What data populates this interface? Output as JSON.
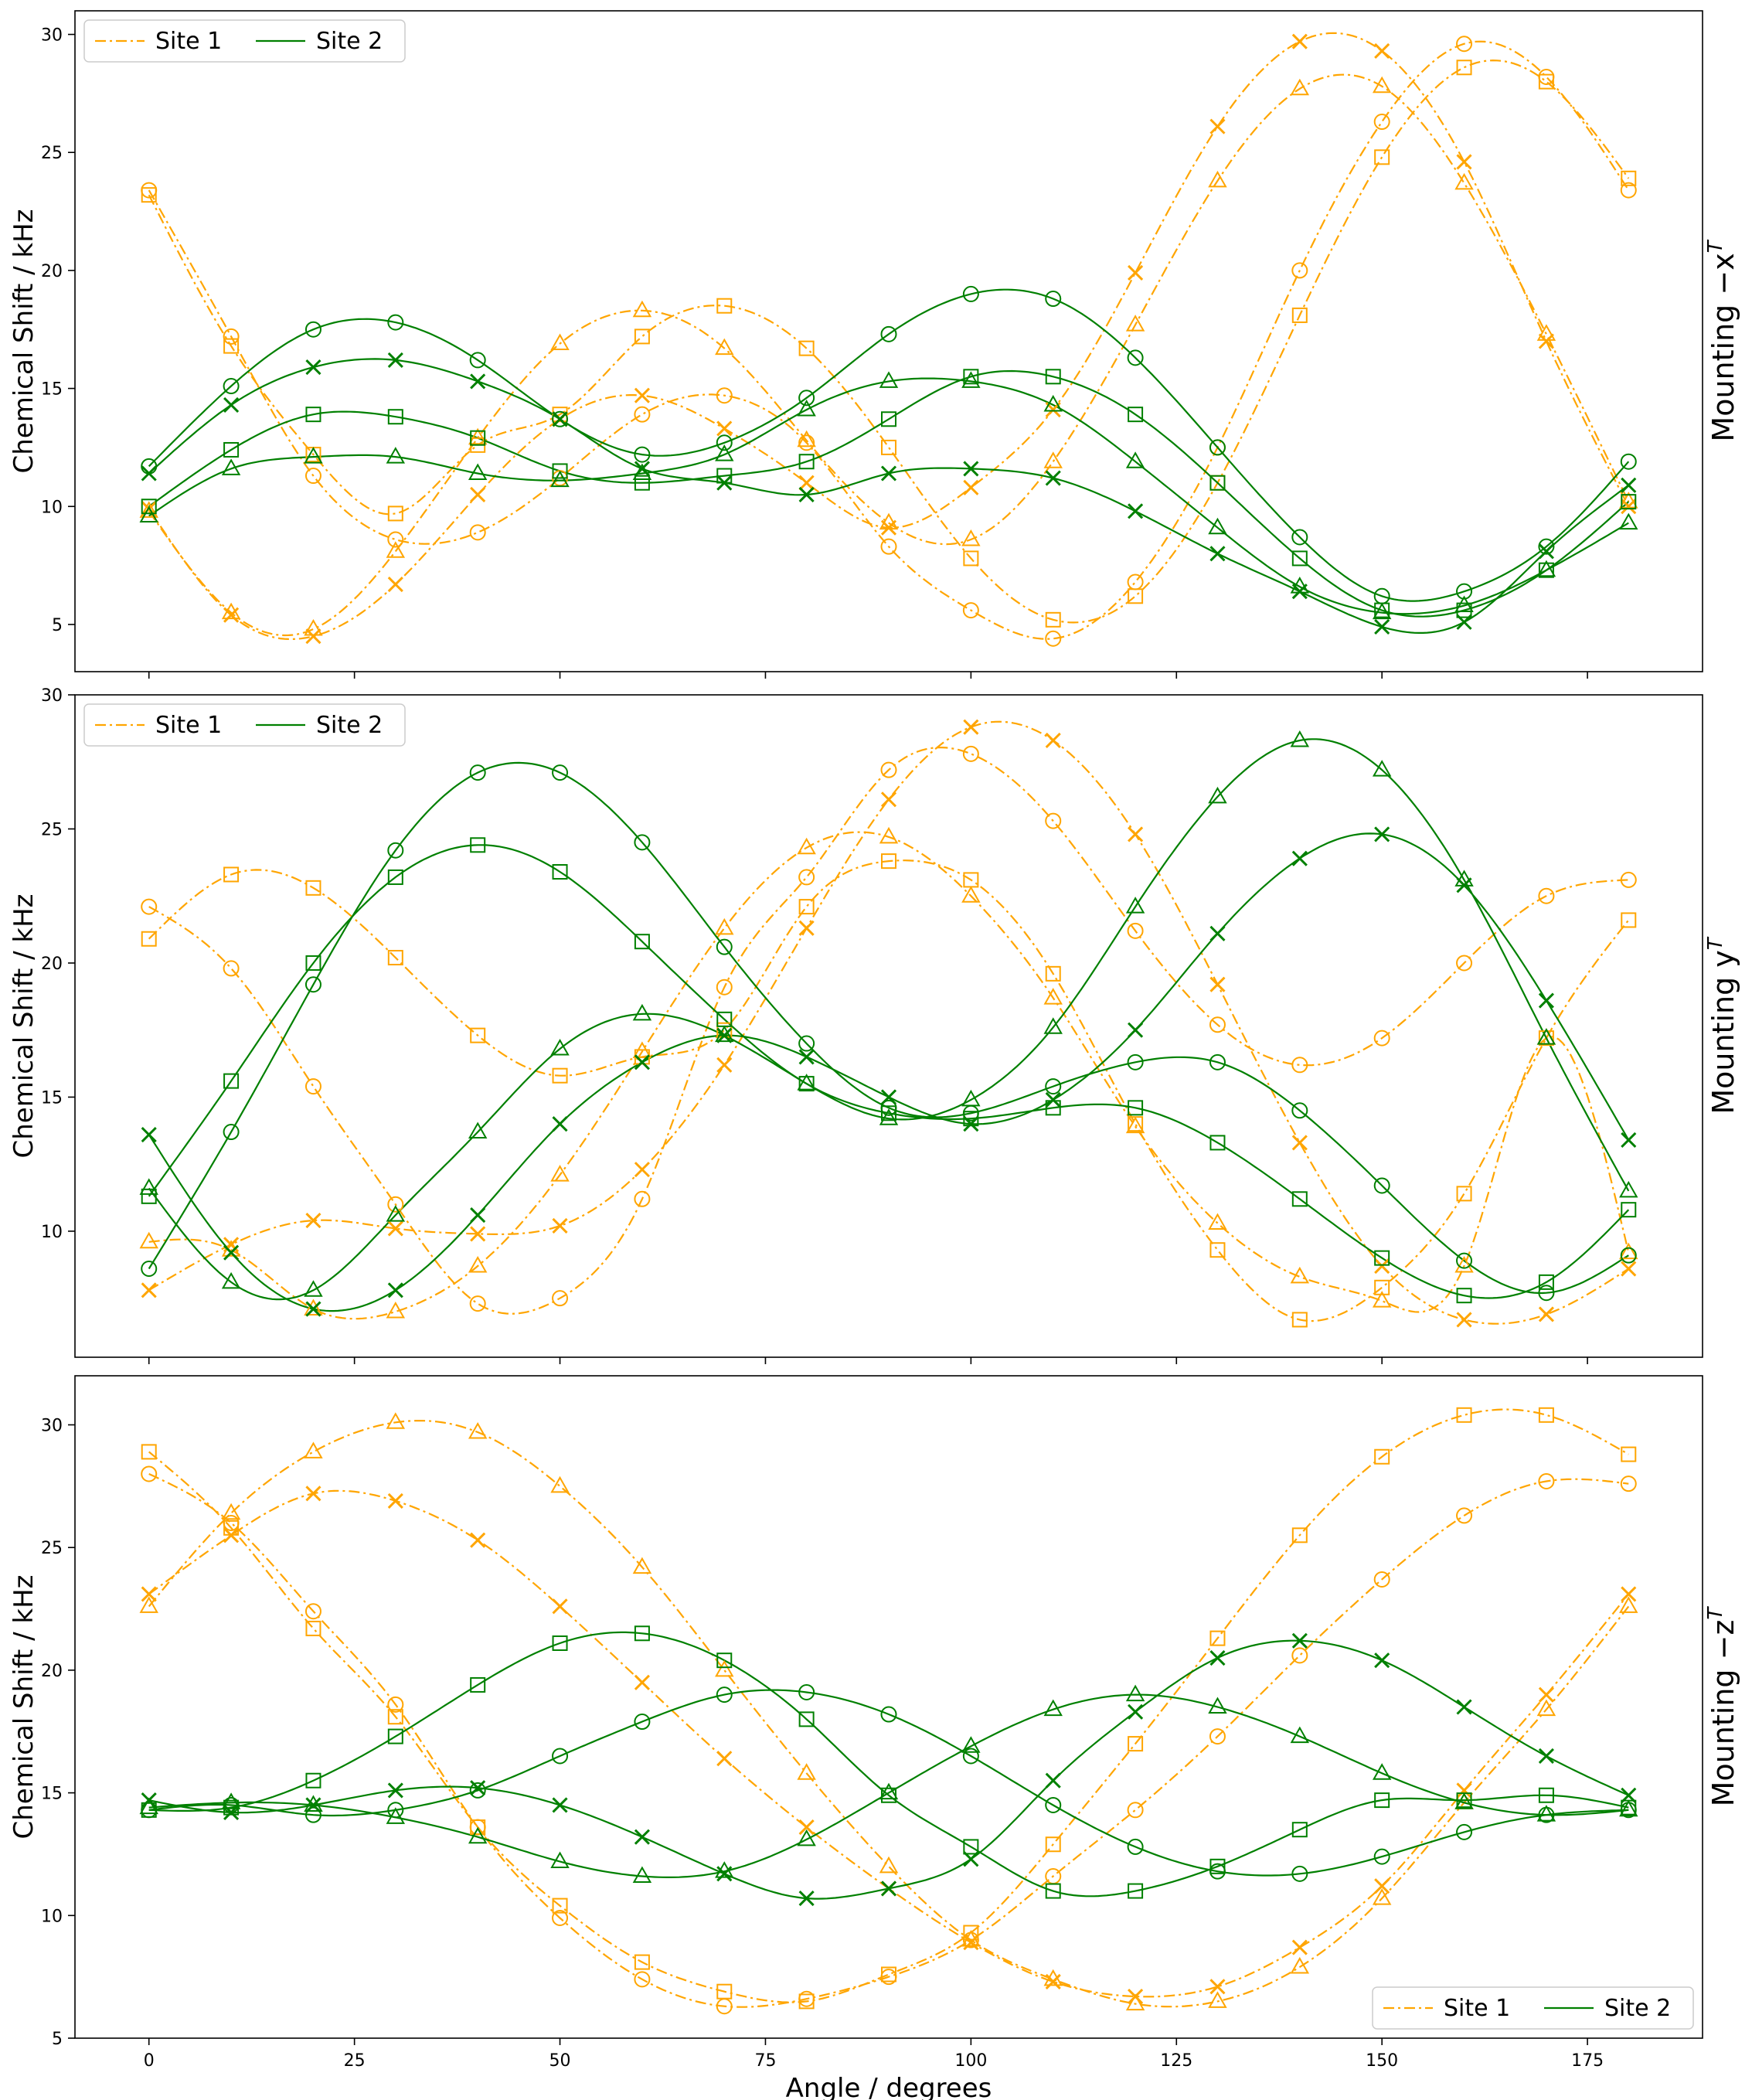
{
  "chart_data": [
    {
      "type": "line",
      "title": "",
      "xlabel": "",
      "ylabel": "Chemical Shift / kHz",
      "side_label": "Mounting −x",
      "side_label_sup": "T",
      "xlim": [
        -9,
        189
      ],
      "ylim": [
        3,
        31
      ],
      "xticks": [
        0,
        25,
        50,
        75,
        100,
        125,
        150,
        175
      ],
      "xtick_labels": [
        "",
        "",
        "",
        "",
        "",
        "",
        "",
        ""
      ],
      "yticks": [
        5,
        10,
        15,
        20,
        25,
        30
      ],
      "ytick_labels": [
        "5",
        "10",
        "15",
        "20",
        "25",
        "30"
      ],
      "legend": {
        "position": "top-left",
        "entries": [
          {
            "label": "Site 1",
            "style": "dashdot",
            "color": "#ffa500"
          },
          {
            "label": "Site 2",
            "style": "solid",
            "color": "#008000"
          }
        ]
      },
      "x": [
        0,
        10,
        20,
        30,
        40,
        50,
        60,
        70,
        80,
        90,
        100,
        110,
        120,
        130,
        140,
        150,
        160,
        170,
        180
      ],
      "series": [
        {
          "name": "Site 1",
          "marker": "circle",
          "color": "#ffa500",
          "values": [
            23.4,
            17.2,
            11.3,
            8.6,
            8.9,
            11.2,
            13.9,
            14.7,
            12.7,
            8.3,
            5.6,
            4.4,
            6.8,
            12.5,
            20.0,
            26.3,
            29.6,
            28.2,
            23.4
          ]
        },
        {
          "name": "Site 1",
          "marker": "square",
          "color": "#ffa500",
          "values": [
            23.2,
            16.8,
            12.2,
            9.7,
            12.6,
            13.9,
            17.2,
            18.5,
            16.7,
            12.5,
            7.8,
            5.2,
            6.2,
            11.0,
            18.1,
            24.8,
            28.6,
            28.0,
            23.9
          ]
        },
        {
          "name": "Site 1",
          "marker": "triangle",
          "color": "#ffa500",
          "values": [
            9.8,
            5.5,
            4.8,
            8.1,
            12.9,
            16.9,
            18.3,
            16.7,
            12.8,
            9.3,
            8.6,
            11.9,
            17.7,
            23.8,
            27.7,
            27.8,
            23.7,
            17.3,
            10.2
          ]
        },
        {
          "name": "Site 1",
          "marker": "x",
          "color": "#ffa500",
          "values": [
            9.9,
            5.4,
            4.5,
            6.7,
            10.5,
            13.7,
            14.7,
            13.3,
            11.0,
            9.1,
            10.8,
            14.1,
            19.9,
            26.1,
            29.7,
            29.3,
            24.6,
            17.0,
            10.0
          ]
        },
        {
          "name": "Site 2",
          "marker": "circle",
          "color": "#008000",
          "values": [
            11.7,
            15.1,
            17.5,
            17.8,
            16.2,
            13.7,
            12.2,
            12.7,
            14.6,
            17.3,
            19.0,
            18.8,
            16.3,
            12.5,
            8.7,
            6.2,
            6.4,
            8.3,
            11.9
          ]
        },
        {
          "name": "Site 2",
          "marker": "square",
          "color": "#008000",
          "values": [
            10.0,
            12.4,
            13.9,
            13.8,
            12.9,
            11.5,
            11.0,
            11.3,
            11.9,
            13.7,
            15.5,
            15.5,
            13.9,
            11.0,
            7.8,
            5.6,
            5.6,
            7.3,
            10.2
          ]
        },
        {
          "name": "Site 2",
          "marker": "triangle",
          "color": "#008000",
          "values": [
            9.6,
            11.6,
            12.1,
            12.1,
            11.4,
            11.1,
            11.4,
            12.2,
            14.1,
            15.3,
            15.3,
            14.3,
            11.9,
            9.1,
            6.6,
            5.5,
            5.8,
            7.3,
            9.3
          ]
        },
        {
          "name": "Site 2",
          "marker": "x",
          "color": "#008000",
          "values": [
            11.4,
            14.3,
            15.9,
            16.2,
            15.3,
            13.7,
            11.6,
            11.0,
            10.5,
            11.4,
            11.6,
            11.2,
            9.8,
            8.0,
            6.4,
            4.9,
            5.1,
            8.1,
            10.9
          ]
        }
      ]
    },
    {
      "type": "line",
      "title": "",
      "xlabel": "",
      "ylabel": "Chemical Shift / kHz",
      "side_label": "Mounting y",
      "side_label_sup": "T",
      "xlim": [
        -9,
        189
      ],
      "ylim": [
        5.3,
        30
      ],
      "xticks": [
        0,
        25,
        50,
        75,
        100,
        125,
        150,
        175
      ],
      "xtick_labels": [
        "",
        "",
        "",
        "",
        "",
        "",
        "",
        ""
      ],
      "yticks": [
        10,
        15,
        20,
        25,
        30
      ],
      "ytick_labels": [
        "10",
        "15",
        "20",
        "25",
        "30"
      ],
      "legend": {
        "position": "top-left",
        "entries": [
          {
            "label": "Site 1",
            "style": "dashdot",
            "color": "#ffa500"
          },
          {
            "label": "Site 2",
            "style": "solid",
            "color": "#008000"
          }
        ]
      },
      "x": [
        0,
        10,
        20,
        30,
        40,
        50,
        60,
        70,
        80,
        90,
        100,
        110,
        120,
        130,
        140,
        150,
        160,
        170,
        180
      ],
      "series": [
        {
          "name": "Site 1",
          "marker": "circle",
          "color": "#ffa500",
          "values": [
            22.1,
            19.8,
            15.4,
            11.0,
            7.3,
            7.5,
            11.2,
            19.1,
            23.2,
            27.2,
            27.8,
            25.3,
            21.2,
            17.7,
            16.2,
            17.2,
            20.0,
            22.5,
            23.1
          ]
        },
        {
          "name": "Site 1",
          "marker": "square",
          "color": "#ffa500",
          "values": [
            20.9,
            23.3,
            22.8,
            20.2,
            17.3,
            15.8,
            16.5,
            17.5,
            22.1,
            23.8,
            23.1,
            19.6,
            14.0,
            9.3,
            6.7,
            7.9,
            11.4,
            17.2,
            21.6
          ]
        },
        {
          "name": "Site 1",
          "marker": "triangle",
          "color": "#ffa500",
          "values": [
            9.6,
            9.3,
            7.1,
            7.0,
            8.7,
            12.1,
            16.7,
            21.3,
            24.3,
            24.7,
            22.5,
            18.7,
            13.9,
            10.3,
            8.3,
            7.4,
            8.7,
            17.2,
            9.2
          ]
        },
        {
          "name": "Site 1",
          "marker": "x",
          "color": "#ffa500",
          "values": [
            7.8,
            9.5,
            10.4,
            10.1,
            9.9,
            10.2,
            12.3,
            16.2,
            21.3,
            26.1,
            28.8,
            28.3,
            24.8,
            19.2,
            13.3,
            8.7,
            6.7,
            6.9,
            8.6
          ]
        },
        {
          "name": "Site 2",
          "marker": "circle",
          "color": "#008000",
          "values": [
            8.6,
            13.7,
            19.2,
            24.2,
            27.1,
            27.1,
            24.5,
            20.6,
            17.0,
            14.6,
            14.4,
            15.4,
            16.3,
            16.3,
            14.5,
            11.7,
            8.9,
            7.7,
            9.1
          ]
        },
        {
          "name": "Site 2",
          "marker": "square",
          "color": "#008000",
          "values": [
            11.3,
            15.6,
            20.0,
            23.2,
            24.4,
            23.4,
            20.8,
            17.9,
            15.5,
            14.4,
            14.2,
            14.6,
            14.6,
            13.3,
            11.2,
            9.0,
            7.6,
            8.1,
            10.8
          ]
        },
        {
          "name": "Site 2",
          "marker": "triangle",
          "color": "#008000",
          "values": [
            11.6,
            8.1,
            7.8,
            10.6,
            13.7,
            16.8,
            18.1,
            17.3,
            15.5,
            14.2,
            14.9,
            17.6,
            22.1,
            26.2,
            28.3,
            27.2,
            23.1,
            17.2,
            11.5
          ]
        },
        {
          "name": "Site 2",
          "marker": "x",
          "color": "#008000",
          "values": [
            13.6,
            9.2,
            7.1,
            7.8,
            10.6,
            14.0,
            16.3,
            17.3,
            16.5,
            15.0,
            14.0,
            14.9,
            17.5,
            21.1,
            23.9,
            24.8,
            22.9,
            18.6,
            13.4
          ]
        }
      ]
    },
    {
      "type": "line",
      "title": "",
      "xlabel": "Angle / degrees",
      "ylabel": "Chemical Shift / kHz",
      "side_label": "Mounting −z",
      "side_label_sup": "T",
      "xlim": [
        -9,
        189
      ],
      "ylim": [
        5,
        32
      ],
      "xticks": [
        0,
        25,
        50,
        75,
        100,
        125,
        150,
        175
      ],
      "xtick_labels": [
        "0",
        "25",
        "50",
        "75",
        "100",
        "125",
        "150",
        "175"
      ],
      "yticks": [
        5,
        10,
        15,
        20,
        25,
        30
      ],
      "ytick_labels": [
        "5",
        "10",
        "15",
        "20",
        "25",
        "30"
      ],
      "legend": {
        "position": "bottom-right",
        "entries": [
          {
            "label": "Site 1",
            "style": "dashdot",
            "color": "#ffa500"
          },
          {
            "label": "Site 2",
            "style": "solid",
            "color": "#008000"
          }
        ]
      },
      "x": [
        0,
        10,
        20,
        30,
        40,
        50,
        60,
        70,
        80,
        90,
        100,
        110,
        120,
        130,
        140,
        150,
        160,
        170,
        180
      ],
      "series": [
        {
          "name": "Site 1",
          "marker": "circle",
          "color": "#ffa500",
          "values": [
            28.0,
            26.0,
            22.4,
            18.6,
            13.6,
            9.9,
            7.4,
            6.3,
            6.6,
            7.5,
            9.0,
            11.6,
            14.3,
            17.3,
            20.6,
            23.7,
            26.3,
            27.7,
            27.6
          ]
        },
        {
          "name": "Site 1",
          "marker": "square",
          "color": "#ffa500",
          "values": [
            28.9,
            25.8,
            21.7,
            18.1,
            13.6,
            10.4,
            8.1,
            6.9,
            6.5,
            7.6,
            9.3,
            12.9,
            17.0,
            21.3,
            25.5,
            28.7,
            30.4,
            30.4,
            28.8
          ]
        },
        {
          "name": "Site 1",
          "marker": "triangle",
          "color": "#ffa500",
          "values": [
            22.6,
            26.4,
            28.9,
            30.1,
            29.7,
            27.5,
            24.2,
            20.0,
            15.8,
            12.0,
            9.0,
            7.4,
            6.4,
            6.5,
            7.9,
            10.7,
            14.6,
            18.4,
            22.6
          ]
        },
        {
          "name": "Site 1",
          "marker": "x",
          "color": "#ffa500",
          "values": [
            23.1,
            25.5,
            27.2,
            26.9,
            25.3,
            22.6,
            19.5,
            16.4,
            13.6,
            11.1,
            8.9,
            7.3,
            6.7,
            7.1,
            8.7,
            11.2,
            15.1,
            19.0,
            23.1
          ]
        },
        {
          "name": "Site 2",
          "marker": "circle",
          "color": "#008000",
          "values": [
            14.3,
            14.5,
            14.1,
            14.3,
            15.1,
            16.5,
            17.9,
            19.0,
            19.1,
            18.2,
            16.5,
            14.5,
            12.8,
            11.8,
            11.7,
            12.4,
            13.4,
            14.1,
            14.3
          ]
        },
        {
          "name": "Site 2",
          "marker": "square",
          "color": "#008000",
          "values": [
            14.3,
            14.4,
            15.5,
            17.3,
            19.4,
            21.1,
            21.5,
            20.4,
            18.0,
            14.9,
            12.8,
            11.0,
            11.0,
            12.0,
            13.5,
            14.7,
            14.7,
            14.9,
            14.4
          ]
        },
        {
          "name": "Site 2",
          "marker": "triangle",
          "color": "#008000",
          "values": [
            14.4,
            14.6,
            14.5,
            14.0,
            13.2,
            12.2,
            11.6,
            11.8,
            13.1,
            15.0,
            16.9,
            18.4,
            19.0,
            18.5,
            17.3,
            15.8,
            14.6,
            14.1,
            14.3
          ]
        },
        {
          "name": "Site 2",
          "marker": "x",
          "color": "#008000",
          "values": [
            14.7,
            14.2,
            14.5,
            15.1,
            15.2,
            14.5,
            13.2,
            11.7,
            10.7,
            11.1,
            12.3,
            15.5,
            18.3,
            20.5,
            21.2,
            20.4,
            18.5,
            16.5,
            14.9
          ]
        }
      ]
    }
  ]
}
